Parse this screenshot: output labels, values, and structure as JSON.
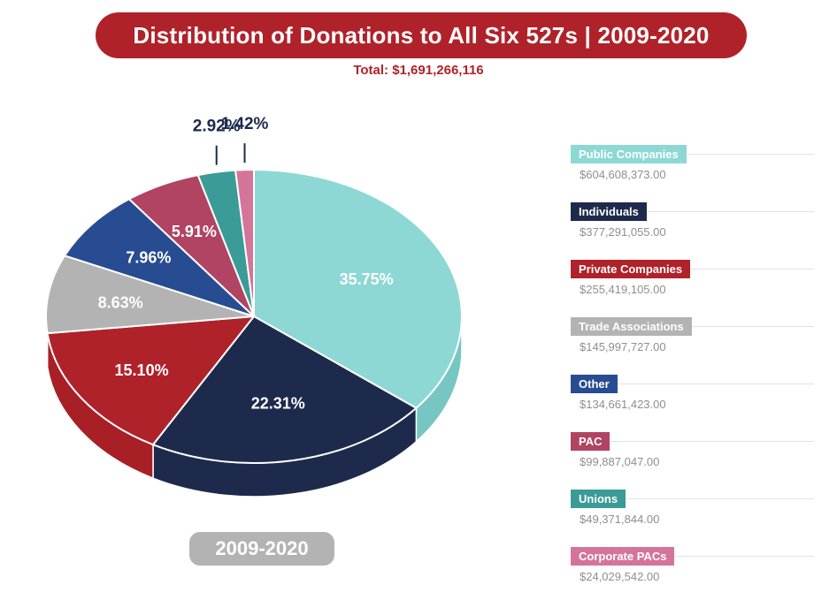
{
  "title": "Distribution of Donations to All Six 527s | 2009-2020",
  "total": "Total: $1,691,266,116",
  "period": "2009-2020",
  "chart_data": {
    "type": "pie",
    "title": "Distribution of Donations to All Six 527s | 2009-2020",
    "subtitle": "Total: $1,691,266,116",
    "legend_position": "right",
    "slices": [
      {
        "name": "Public Companies",
        "percent": 35.75,
        "label": "35.75%",
        "amount": "$604,608,373.00",
        "color": "#8dd8d5",
        "side_color": "#76c6c3",
        "text_color": "#ffffff"
      },
      {
        "name": "Individuals",
        "percent": 22.31,
        "label": "22.31%",
        "amount": "$377,291,055.00",
        "color": "#1d2a4c",
        "side_color": "#1d2a4c",
        "text_color": "#ffffff"
      },
      {
        "name": "Private Companies",
        "percent": 15.1,
        "label": "15.10%",
        "amount": "$255,419,105.00",
        "color": "#b0222a",
        "side_color": "#a81f26",
        "text_color": "#ffffff"
      },
      {
        "name": "Trade Associations",
        "percent": 8.63,
        "label": "8.63%",
        "amount": "$145,997,727.00",
        "color": "#b3b3b3",
        "side_color": "#a5a5a5",
        "text_color": "#ffffff"
      },
      {
        "name": "Other",
        "percent": 7.96,
        "label": "7.96%",
        "amount": "$134,661,423.00",
        "color": "#284c92",
        "side_color": "#213f7c",
        "text_color": "#ffffff"
      },
      {
        "name": "PAC",
        "percent": 5.91,
        "label": "5.91%",
        "amount": "$99,887,047.00",
        "color": "#b04462",
        "side_color": "#983a55",
        "text_color": "#ffffff"
      },
      {
        "name": "Unions",
        "percent": 2.92,
        "label": "2.92%",
        "amount": "$49,371,844.00",
        "color": "#3b9b97",
        "side_color": "#31827f",
        "text_color": "#1d2a4c"
      },
      {
        "name": "Corporate PACs",
        "percent": 1.42,
        "label": "1.42%",
        "amount": "$24,029,542.00",
        "color": "#d5749b",
        "side_color": "#be6187",
        "text_color": "#1d2a4c"
      }
    ]
  }
}
